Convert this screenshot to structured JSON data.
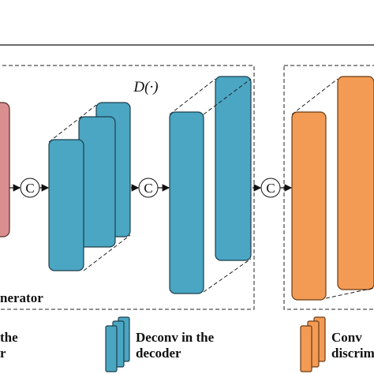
{
  "d_label": "D(·)",
  "concat_nodes": [
    "C",
    "C",
    "C"
  ],
  "generator_label": "nerator",
  "legend": [
    {
      "lines": [
        "the",
        "r"
      ]
    },
    {
      "lines": [
        "Deconv in the",
        "decoder"
      ]
    },
    {
      "lines": [
        "Conv",
        "discrim"
      ]
    }
  ]
}
